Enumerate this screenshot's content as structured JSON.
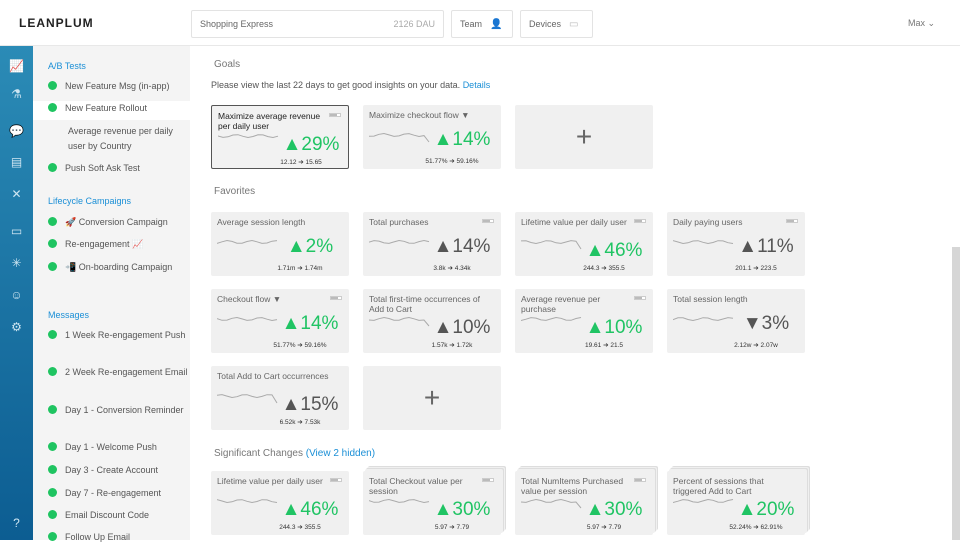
{
  "header": {
    "logo": "LEANPLUM",
    "app_name": "Shopping Express",
    "dau": "2126 DAU",
    "team": "Team",
    "devices": "Devices",
    "user": "Max ⌄"
  },
  "rail_icons": [
    "analytics-icon",
    "ab-test-icon",
    "messages-icon",
    "campaigns-icon",
    "variables-icon",
    "files-icon",
    "debug-icon",
    "users-icon",
    "settings-icon",
    "help-icon"
  ],
  "sidebar": {
    "ab_tests": {
      "heading": "A/B Tests",
      "items": [
        "New Feature Msg (in-app)",
        "New Feature Rollout",
        "Push Soft Ask Test"
      ],
      "sub_item": "Average revenue per daily user by Country"
    },
    "lifecycle": {
      "heading": "Lifecycle Campaigns",
      "items": [
        "🚀 Conversion Campaign",
        "Re-engagement 📈",
        "📲 On-boarding Campaign"
      ]
    },
    "messages": {
      "heading": "Messages",
      "items": [
        "1 Week Re-engagement Push",
        "2 Week Re-engagement Email",
        "Day 1 - Conversion Reminder",
        "Day 1 - Welcome Push",
        "Day 3 - Create Account",
        "Day 7 - Re-engagement",
        "Email Discount Code",
        "Follow Up Email"
      ]
    }
  },
  "goals": {
    "heading": "Goals",
    "note": "Please view the last 22 days to get good insights on your data.",
    "details_link": "Details",
    "cards": [
      {
        "title": "Maximize average revenue per daily user",
        "pct": "▲29%",
        "dir": "up",
        "range": "12.12 ➔ 15.65",
        "selected": true,
        "batt": true
      },
      {
        "title": "Maximize checkout flow ▼",
        "pct": "▲14%",
        "dir": "up",
        "range": "51.77% ➔ 59.16%",
        "batt": false
      }
    ],
    "add": "+"
  },
  "favorites": {
    "heading": "Favorites",
    "cards": [
      {
        "title": "Average session length",
        "pct": "▲2%",
        "dir": "up",
        "range": "1.71m ➔ 1.74m",
        "batt": false
      },
      {
        "title": "Total purchases",
        "pct": "▲14%",
        "dir": "neutral",
        "range": "3.8k ➔ 4.34k",
        "batt": true
      },
      {
        "title": "Lifetime value per daily user",
        "pct": "▲46%",
        "dir": "up",
        "range": "244.3 ➔ 355.5",
        "batt": true
      },
      {
        "title": "Daily paying users",
        "pct": "▲11%",
        "dir": "neutral",
        "range": "201.1 ➔ 223.5",
        "batt": true
      },
      {
        "title": "Checkout flow ▼",
        "pct": "▲14%",
        "dir": "up",
        "range": "51.77% ➔ 59.16%",
        "batt": true
      },
      {
        "title": "Total first-time occurrences of Add to Cart",
        "pct": "▲10%",
        "dir": "neutral",
        "range": "1.57k ➔ 1.72k",
        "batt": false
      },
      {
        "title": "Average revenue per purchase",
        "pct": "▲10%",
        "dir": "up",
        "range": "19.61 ➔ 21.5",
        "batt": true
      },
      {
        "title": "Total session length",
        "pct": "▼3%",
        "dir": "neutral",
        "range": "2.12w ➔ 2.07w",
        "batt": false
      },
      {
        "title": "Total Add to Cart occurrences",
        "pct": "▲15%",
        "dir": "neutral",
        "range": "6.52k ➔ 7.53k",
        "batt": false
      }
    ],
    "add": "+"
  },
  "significant": {
    "heading": "Significant Changes",
    "hidden_link": "(View 2 hidden)",
    "cards": [
      {
        "title": "Lifetime value per daily user",
        "pct": "▲46%",
        "dir": "up",
        "range": "244.3 ➔ 355.5",
        "batt": true
      },
      {
        "title": "Total Checkout value per session",
        "pct": "▲30%",
        "dir": "up",
        "range": "5.97 ➔ 7.79",
        "batt": true,
        "stack": true
      },
      {
        "title": "Total NumItems Purchased value per session",
        "pct": "▲30%",
        "dir": "up",
        "range": "5.97 ➔ 7.79",
        "batt": true,
        "stack": true
      },
      {
        "title": "Percent of sessions that triggered Add to Cart",
        "pct": "▲20%",
        "dir": "up",
        "range": "52.24% ➔ 62.91%",
        "batt": false,
        "stack": true
      }
    ]
  },
  "colors": {
    "accent": "#1b8fd6",
    "positive": "#20c464",
    "status_dot": "#1fc461",
    "rail_top": "#2b8bb6",
    "rail_bottom": "#0c5d92"
  }
}
